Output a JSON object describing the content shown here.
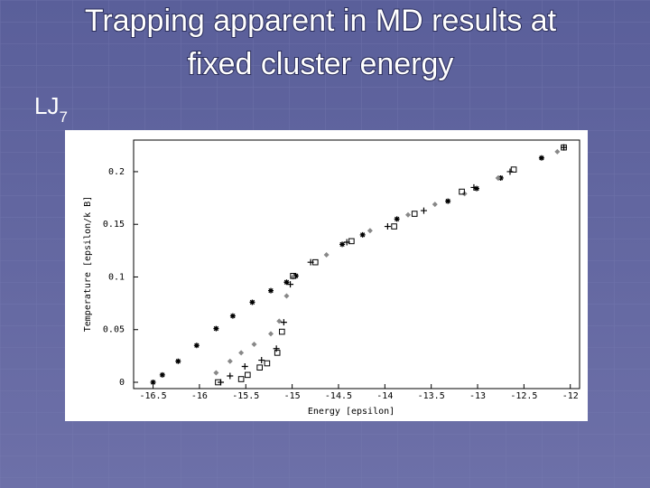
{
  "slide": {
    "title_lines": [
      "Trapping apparent in MD results at",
      "fixed cluster energy"
    ],
    "label": "LJ",
    "subscript": "7"
  },
  "chart_data": {
    "type": "scatter",
    "x_label": "Energy [epsilon]",
    "y_label": "Temperature [epsilon/k B]",
    "xlim": [
      -16.71,
      -11.9
    ],
    "ylim": [
      -0.006,
      0.23
    ],
    "xticks": [
      -16.5,
      -16,
      -15.5,
      -15,
      -14.5,
      -14,
      -13.5,
      -13,
      -12.5,
      -12
    ],
    "yticks": [
      0,
      0.05,
      0.1,
      0.15,
      0.2
    ],
    "series": [
      {
        "marker": "asterisk",
        "color": "#000000",
        "x": [
          -16.5,
          -16.4,
          -16.23,
          -16.03,
          -15.82,
          -15.64,
          -15.43,
          -15.23,
          -15.06,
          -14.96,
          -14.46,
          -14.24,
          -13.87,
          -13.32,
          -13.01,
          -12.75,
          -12.31
        ],
        "values": [
          0,
          0.007,
          0.02,
          0.035,
          0.051,
          0.063,
          0.076,
          0.087,
          0.095,
          0.101,
          0.131,
          0.14,
          0.155,
          0.172,
          0.184,
          0.194,
          0.213
        ]
      },
      {
        "marker": "diamond",
        "color": "#888888",
        "x": [
          -15.82,
          -15.67,
          -15.55,
          -15.41,
          -15.23,
          -15.14,
          -15.06,
          -14.99,
          -14.63,
          -14.16,
          -13.75,
          -13.46,
          -13.14,
          -12.78,
          -12.14
        ],
        "values": [
          0.009,
          0.02,
          0.028,
          0.036,
          0.046,
          0.058,
          0.082,
          0.1,
          0.121,
          0.144,
          0.159,
          0.169,
          0.179,
          0.194,
          0.219
        ]
      },
      {
        "marker": "plus",
        "color": "#000000",
        "x": [
          -15.77,
          -15.67,
          -15.51,
          -15.33,
          -15.17,
          -15.09,
          -15.02,
          -14.8,
          -14.41,
          -13.97,
          -13.58,
          -13.04,
          -12.65,
          -12.07
        ],
        "values": [
          0,
          0.006,
          0.015,
          0.021,
          0.032,
          0.057,
          0.093,
          0.114,
          0.133,
          0.148,
          0.163,
          0.185,
          0.2,
          0.223
        ]
      },
      {
        "marker": "square",
        "color": "#000000",
        "x": [
          -15.8,
          -15.55,
          -15.48,
          -15.35,
          -15.27,
          -15.16,
          -15.11,
          -14.99,
          -14.75,
          -14.36,
          -13.9,
          -13.68,
          -13.17,
          -12.61,
          -12.07
        ],
        "values": [
          0,
          0.003,
          0.007,
          0.014,
          0.018,
          0.028,
          0.048,
          0.101,
          0.114,
          0.134,
          0.148,
          0.16,
          0.181,
          0.202,
          0.223
        ]
      }
    ]
  }
}
